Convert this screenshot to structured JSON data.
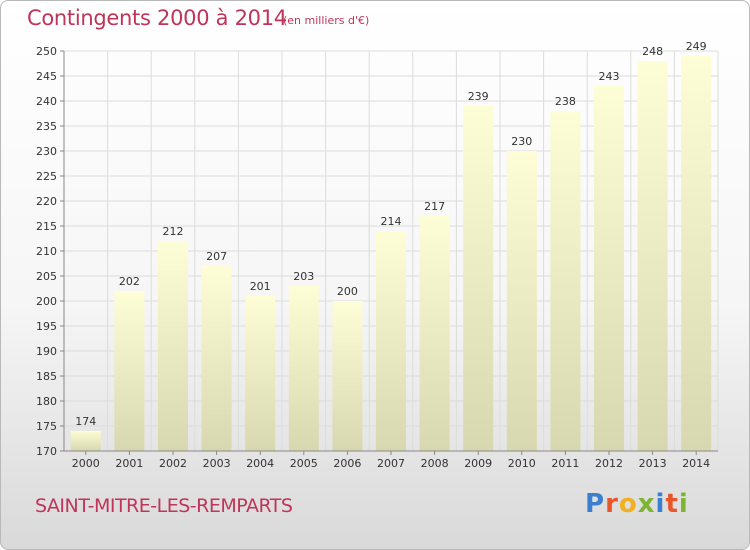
{
  "header": {
    "title": "Contingents 2000 à 2014",
    "subtitle": "(en milliers d'€)"
  },
  "footer": {
    "commune": "SAINT-MITRE-LES-REMPARTS",
    "logo_text": "Proxiti",
    "logo_colors": [
      "#3a7fd0",
      "#e8562a",
      "#f0b020",
      "#7cb530",
      "#3a7fd0",
      "#e8562a",
      "#7cb530"
    ]
  },
  "chart_data": {
    "type": "bar",
    "categories": [
      "2000",
      "2001",
      "2002",
      "2003",
      "2004",
      "2005",
      "2006",
      "2007",
      "2008",
      "2009",
      "2010",
      "2011",
      "2012",
      "2013",
      "2014"
    ],
    "values": [
      174,
      202,
      212,
      207,
      201,
      203,
      200,
      214,
      217,
      239,
      230,
      238,
      243,
      248,
      249
    ],
    "ylim": [
      170,
      250
    ],
    "yticks": [
      170,
      175,
      180,
      185,
      190,
      195,
      200,
      205,
      210,
      215,
      220,
      225,
      230,
      235,
      240,
      245,
      250
    ],
    "grid": true,
    "bar_color_top": "#fdfdd6",
    "bar_color_bottom": "#d8d8b0",
    "title_color": "#c0345a"
  }
}
